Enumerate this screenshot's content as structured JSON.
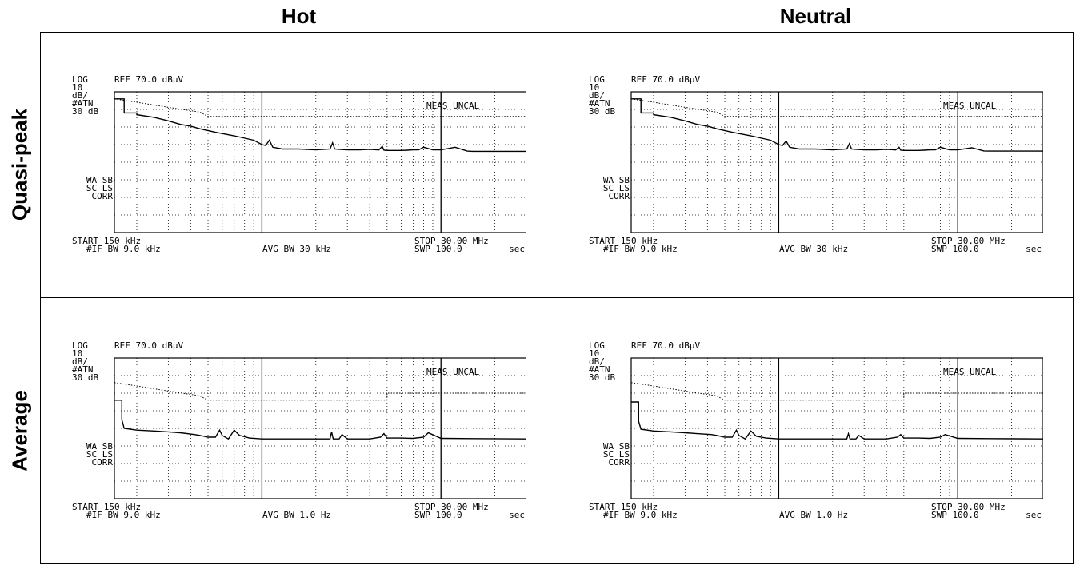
{
  "headers": {
    "col_hot": "Hot",
    "col_neutral": "Neutral",
    "row_qp": "Quasi-peak",
    "row_avg": "Average"
  },
  "chart_data": [
    {
      "type": "line",
      "detector": "Quasi-peak",
      "conductor": "Hot",
      "labels": {
        "log": "LOG",
        "ref": "REF 70.0 dBµV",
        "scale_num": "10",
        "scale_unit": "dB/",
        "atn": "#ATN",
        "atn_val": "30 dB",
        "wa": "WA SB",
        "sc": "SC LS",
        "corr": "CORR",
        "start": "START 150 kHz",
        "stop": "STOP 30.00 MHz",
        "ifbw": "#IF BW 9.0 kHz",
        "avgbw": "AVG BW 30 kHz",
        "swp": "SWP 100.0",
        "sec": "sec",
        "uncal": "MEAS UNCAL"
      },
      "xlim": [
        0.15,
        30
      ],
      "xscale": "log",
      "ylim": [
        -10,
        70
      ],
      "grid": true,
      "series": [
        {
          "style": "dotted",
          "x": [
            0.15,
            0.2,
            0.3,
            0.45,
            0.5,
            5.0,
            5.0,
            30
          ],
          "y": [
            66,
            64.1,
            61.2,
            58.5,
            56,
            56,
            56,
            56
          ]
        },
        {
          "style": "solid",
          "x": [
            0.15,
            0.17,
            0.17,
            0.2,
            0.2,
            0.25,
            0.3,
            0.35,
            0.4,
            0.45,
            0.55,
            0.7,
            0.9,
            1.0,
            1.05,
            1.1,
            1.15,
            1.3,
            1.6,
            2.0,
            2.4,
            2.48,
            2.55,
            2.7,
            3.0,
            3.5,
            4.0,
            4.5,
            4.7,
            4.8,
            5.0,
            5.5,
            6.0,
            6.5,
            7.0,
            7.5,
            8.0,
            9.0,
            10.0,
            12.0,
            14.0,
            15.0,
            30.0
          ],
          "y": [
            66,
            66,
            58,
            58,
            57,
            55.5,
            53.5,
            51.5,
            50.5,
            49,
            47,
            45,
            42.5,
            40,
            39.5,
            42.5,
            38.5,
            37.5,
            37.5,
            37,
            37.5,
            41,
            37.5,
            37.3,
            37,
            37,
            37.3,
            37,
            39,
            36.8,
            36.7,
            36.7,
            36.7,
            36.8,
            37,
            37,
            38.5,
            37,
            37,
            38.5,
            36.3,
            36.2,
            36.2
          ]
        }
      ]
    },
    {
      "type": "line",
      "detector": "Quasi-peak",
      "conductor": "Neutral",
      "labels": {
        "log": "LOG",
        "ref": "REF 70.0 dBµV",
        "scale_num": "10",
        "scale_unit": "dB/",
        "atn": "#ATN",
        "atn_val": "30 dB",
        "wa": "WA SB",
        "sc": "SC LS",
        "corr": "CORR",
        "start": "START 150 kHz",
        "stop": "STOP 30.00 MHz",
        "ifbw": "#IF BW 9.0 kHz",
        "avgbw": "AVG BW 30 kHz",
        "swp": "SWP 100.0",
        "sec": "sec",
        "uncal": "MEAS UNCAL"
      },
      "xlim": [
        0.15,
        30
      ],
      "xscale": "log",
      "ylim": [
        -10,
        70
      ],
      "grid": true,
      "series": [
        {
          "style": "dotted",
          "x": [
            0.15,
            0.2,
            0.3,
            0.45,
            0.5,
            5.0,
            5.0,
            30
          ],
          "y": [
            66,
            64.1,
            61.2,
            58.5,
            56,
            56,
            56,
            56
          ]
        },
        {
          "style": "solid",
          "x": [
            0.15,
            0.17,
            0.17,
            0.2,
            0.2,
            0.25,
            0.3,
            0.35,
            0.4,
            0.45,
            0.55,
            0.7,
            0.9,
            1.0,
            1.05,
            1.1,
            1.15,
            1.3,
            1.6,
            2.0,
            2.4,
            2.48,
            2.55,
            2.7,
            3.0,
            3.5,
            4.0,
            4.5,
            4.7,
            4.8,
            5.0,
            5.5,
            6.0,
            6.5,
            7.0,
            7.5,
            8.0,
            9.0,
            10.0,
            12.0,
            14.0,
            15.0,
            30.0
          ],
          "y": [
            66,
            66,
            58,
            58,
            57,
            55.5,
            53.5,
            51.5,
            50.5,
            49,
            47,
            45,
            42.5,
            40,
            39.5,
            42,
            38.5,
            37.5,
            37.5,
            37,
            37.5,
            40.5,
            37.5,
            37.3,
            37,
            37,
            37.3,
            37,
            38.5,
            36.8,
            36.7,
            36.7,
            36.7,
            36.8,
            37,
            37,
            38.5,
            37,
            37,
            38.2,
            36.4,
            36.3,
            36.3
          ]
        }
      ]
    },
    {
      "type": "line",
      "detector": "Average",
      "conductor": "Hot",
      "labels": {
        "log": "LOG",
        "ref": "REF 70.0 dBµV",
        "scale_num": "10",
        "scale_unit": "dB/",
        "atn": "#ATN",
        "atn_val": "30 dB",
        "wa": "WA SB",
        "sc": "SC LS",
        "corr": "CORR",
        "start": "START 150 kHz",
        "stop": "STOP 30.00 MHz",
        "ifbw": "#IF BW 9.0 kHz",
        "avgbw": "AVG BW 1.0 Hz",
        "swp": "SWP 100.0",
        "sec": "sec",
        "uncal": "MEAS UNCAL"
      },
      "xlim": [
        0.15,
        30
      ],
      "xscale": "log",
      "ylim": [
        -10,
        70
      ],
      "grid": true,
      "series": [
        {
          "style": "dotted",
          "x": [
            0.15,
            0.2,
            0.3,
            0.45,
            0.5,
            5.0,
            5.0,
            30
          ],
          "y": [
            56,
            54.1,
            51.2,
            48.5,
            46,
            46,
            50,
            50
          ]
        },
        {
          "style": "solid",
          "x": [
            0.15,
            0.165,
            0.165,
            0.17,
            0.2,
            0.25,
            0.3,
            0.35,
            0.42,
            0.45,
            0.5,
            0.55,
            0.58,
            0.6,
            0.65,
            0.7,
            0.75,
            0.85,
            1.0,
            1.5,
            2.0,
            2.4,
            2.45,
            2.5,
            2.7,
            2.8,
            3.0,
            4.0,
            4.6,
            4.8,
            5.0,
            6.0,
            7.0,
            8.0,
            8.5,
            10.0,
            15.0,
            30.0
          ],
          "y": [
            46,
            46,
            35,
            30,
            29,
            28.5,
            28,
            27.5,
            26.5,
            26,
            25,
            25,
            29,
            26,
            24,
            29,
            26,
            24.5,
            24,
            24,
            24,
            24,
            28,
            24,
            24,
            26.5,
            24,
            24,
            25,
            27,
            24.5,
            24.5,
            24.3,
            25,
            27.5,
            24.3,
            24.2,
            24
          ]
        }
      ]
    },
    {
      "type": "line",
      "detector": "Average",
      "conductor": "Neutral",
      "labels": {
        "log": "LOG",
        "ref": "REF 70.0 dBµV",
        "scale_num": "10",
        "scale_unit": "dB/",
        "atn": "#ATN",
        "atn_val": "30 dB",
        "wa": "WA SB",
        "sc": "SC LS",
        "corr": "CORR",
        "start": "START 150 kHz",
        "stop": "STOP 30.00 MHz",
        "ifbw": "#IF BW 9.0 kHz",
        "avgbw": "AVG BW 1.0 Hz",
        "swp": "SWP 100.0",
        "sec": "sec",
        "uncal": "MEAS UNCAL"
      },
      "xlim": [
        0.15,
        30
      ],
      "xscale": "log",
      "ylim": [
        -10,
        70
      ],
      "grid": true,
      "series": [
        {
          "style": "dotted",
          "x": [
            0.15,
            0.2,
            0.3,
            0.45,
            0.5,
            5.0,
            5.0,
            30
          ],
          "y": [
            56,
            54.1,
            51.2,
            48.5,
            46,
            46,
            50,
            50
          ]
        },
        {
          "style": "solid",
          "x": [
            0.15,
            0.165,
            0.165,
            0.17,
            0.2,
            0.25,
            0.3,
            0.35,
            0.42,
            0.45,
            0.5,
            0.55,
            0.58,
            0.6,
            0.65,
            0.7,
            0.75,
            0.85,
            1.0,
            1.5,
            2.0,
            2.4,
            2.45,
            2.5,
            2.7,
            2.8,
            3.0,
            4.0,
            4.6,
            4.8,
            5.0,
            6.0,
            7.0,
            8.0,
            8.5,
            10.0,
            15.0,
            30.0
          ],
          "y": [
            45,
            45,
            34,
            29.5,
            28.5,
            28,
            27.5,
            27,
            26.5,
            26,
            25,
            25,
            29,
            26,
            24,
            28.5,
            25.5,
            24.5,
            24,
            24,
            24,
            24,
            27,
            24,
            24,
            26,
            24,
            24,
            25,
            26.5,
            24.5,
            24.5,
            24.3,
            25,
            26.5,
            24.3,
            24.2,
            24
          ]
        }
      ]
    }
  ]
}
